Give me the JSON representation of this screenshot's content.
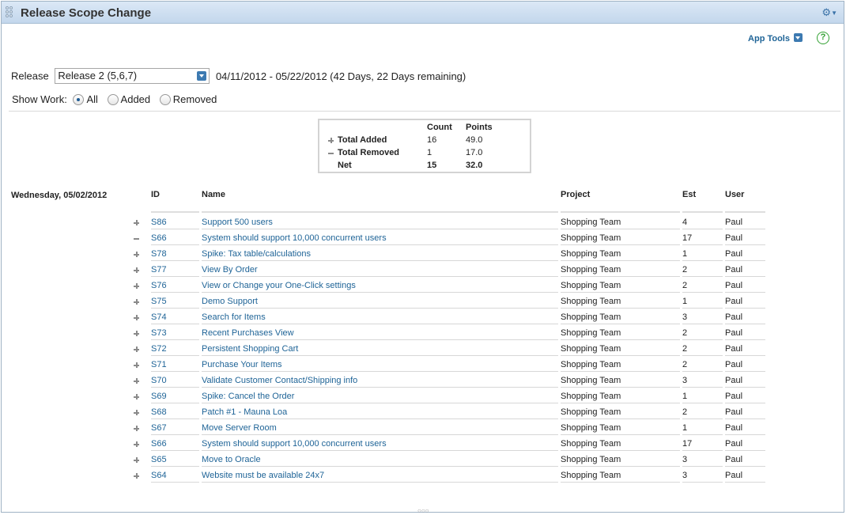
{
  "window": {
    "title": "Release Scope Change"
  },
  "header": {
    "app_tools_label": "App Tools"
  },
  "release": {
    "label": "Release",
    "selected": "Release 2 (5,6,7)",
    "date_range": "04/11/2012 - 05/22/2012 (42 Days, 22 Days remaining)"
  },
  "show_work": {
    "label": "Show Work:",
    "options": [
      "All",
      "Added",
      "Removed"
    ],
    "selected": "All"
  },
  "summary": {
    "headers": [
      "Count",
      "Points"
    ],
    "rows": [
      {
        "symbol": "plus",
        "label": "Total Added",
        "count": "16",
        "points": "49.0"
      },
      {
        "symbol": "minus",
        "label": "Total Removed",
        "count": "1",
        "points": "17.0"
      },
      {
        "symbol": "",
        "label": "Net",
        "count": "15",
        "points": "32.0"
      }
    ]
  },
  "day_label": "Wednesday, 05/02/2012",
  "table": {
    "columns": [
      "ID",
      "Name",
      "Project",
      "Est",
      "User"
    ],
    "rows": [
      {
        "type": "added",
        "id": "S86",
        "name": "Support 500 users",
        "project": "Shopping Team",
        "est": "4",
        "user": "Paul"
      },
      {
        "type": "removed",
        "id": "S66",
        "name": "System should support 10,000 concurrent users",
        "project": "Shopping Team",
        "est": "17",
        "user": "Paul"
      },
      {
        "type": "added",
        "id": "S78",
        "name": "Spike: Tax table/calculations",
        "project": "Shopping Team",
        "est": "1",
        "user": "Paul"
      },
      {
        "type": "added",
        "id": "S77",
        "name": "View By Order",
        "project": "Shopping Team",
        "est": "2",
        "user": "Paul"
      },
      {
        "type": "added",
        "id": "S76",
        "name": "View or Change your One-Click settings",
        "project": "Shopping Team",
        "est": "2",
        "user": "Paul"
      },
      {
        "type": "added",
        "id": "S75",
        "name": "Demo Support",
        "project": "Shopping Team",
        "est": "1",
        "user": "Paul"
      },
      {
        "type": "added",
        "id": "S74",
        "name": "Search for Items",
        "project": "Shopping Team",
        "est": "3",
        "user": "Paul"
      },
      {
        "type": "added",
        "id": "S73",
        "name": "Recent Purchases View",
        "project": "Shopping Team",
        "est": "2",
        "user": "Paul"
      },
      {
        "type": "added",
        "id": "S72",
        "name": "Persistent Shopping Cart",
        "project": "Shopping Team",
        "est": "2",
        "user": "Paul"
      },
      {
        "type": "added",
        "id": "S71",
        "name": "Purchase Your Items",
        "project": "Shopping Team",
        "est": "2",
        "user": "Paul"
      },
      {
        "type": "added",
        "id": "S70",
        "name": "Validate Customer Contact/Shipping info",
        "project": "Shopping Team",
        "est": "3",
        "user": "Paul"
      },
      {
        "type": "added",
        "id": "S69",
        "name": "Spike: Cancel the Order",
        "project": "Shopping Team",
        "est": "1",
        "user": "Paul"
      },
      {
        "type": "added",
        "id": "S68",
        "name": "Patch #1 - Mauna Loa",
        "project": "Shopping Team",
        "est": "2",
        "user": "Paul"
      },
      {
        "type": "added",
        "id": "S67",
        "name": "Move Server Room",
        "project": "Shopping Team",
        "est": "1",
        "user": "Paul"
      },
      {
        "type": "added",
        "id": "S66",
        "name": "System should support 10,000 concurrent users",
        "project": "Shopping Team",
        "est": "17",
        "user": "Paul"
      },
      {
        "type": "added",
        "id": "S65",
        "name": "Move to Oracle",
        "project": "Shopping Team",
        "est": "3",
        "user": "Paul"
      },
      {
        "type": "added",
        "id": "S64",
        "name": "Website must be available 24x7",
        "project": "Shopping Team",
        "est": "3",
        "user": "Paul"
      }
    ]
  },
  "icons": {
    "drag_grip": "drag-grip-icon",
    "settings": "gear-icon",
    "help": "help-icon",
    "added": "plus-icon",
    "removed": "minus-icon"
  },
  "colors": {
    "link": "#1f6497",
    "titlebar": "#c3d7ec",
    "help": "#33a133"
  }
}
